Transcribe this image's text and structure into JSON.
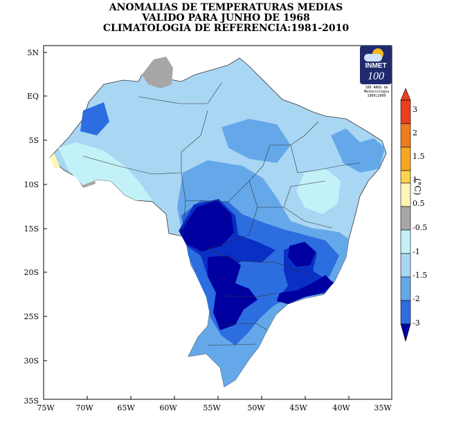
{
  "title": {
    "line1": "ANOMALIAS DE TEMPERATURAS MEDIAS",
    "line2": "VALIDO PARA JUNHO DE 1968",
    "line3": "CLIMATOLOGIA DE REFERENCIA:1981-2010"
  },
  "logo": {
    "name": "INMET",
    "number": "100",
    "caption_line1": "100 ANOS de",
    "caption_line2": "Meteorologia",
    "caption_line3": "1909|2009"
  },
  "axes": {
    "y_ticks": [
      "5N",
      "EQ",
      "5S",
      "10S",
      "15S",
      "20S",
      "25S",
      "30S",
      "35S"
    ],
    "x_ticks": [
      "75W",
      "70W",
      "65W",
      "60W",
      "55W",
      "50W",
      "45W",
      "40W",
      "35W"
    ]
  },
  "legend": {
    "unit": "(°C)",
    "labels": [
      "3",
      "2",
      "1.5",
      "1",
      "0.5",
      "-0.5",
      "-1",
      "-1.5",
      "-2",
      "-3"
    ],
    "colors": [
      "#e8401c",
      "#f07b1e",
      "#f6a623",
      "#fbd34d",
      "#fdf6b4",
      "#a6a6a6",
      "#c3f1f8",
      "#a9d6f3",
      "#64a8ea",
      "#2c6de0",
      "#0a2fc4",
      "#0000a0"
    ]
  },
  "map": {
    "colors": {
      "background_land": "#a9d6f3",
      "neutral": "#a6a6a6",
      "light": "#c3f1f8",
      "mid": "#64a8ea",
      "strong": "#2c6de0",
      "deep": "#0a2fc4",
      "extreme": "#0000a0",
      "warm": "#fdf6b4"
    }
  }
}
